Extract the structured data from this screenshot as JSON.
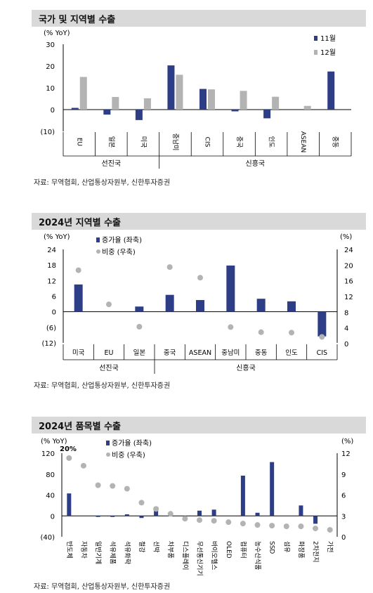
{
  "charts": [
    {
      "title": "국가 및 지역별 수출",
      "source": "자료: 무역협회, 산업통상자원부, 신한투자증권",
      "y_unit": "(% YoY)",
      "y_ticks": [
        "30",
        "20",
        "10",
        "0",
        "(10)"
      ],
      "legend": [
        "11월",
        "12월"
      ],
      "colors": {
        "nov": "#2e3e86",
        "dec": "#b3b3b3"
      },
      "groups": [
        "선진국",
        "신흥국"
      ]
    },
    {
      "title": "2024년 지역별 수출",
      "source": "자료: 무역협회, 산업통상자원부, 신한투자증권",
      "y_unit": "(% YoY)",
      "y2_unit": "(%)",
      "y_ticks": [
        "24",
        "18",
        "12",
        "6",
        "0",
        "(6)",
        "(12)"
      ],
      "y2_ticks": [
        "24",
        "20",
        "16",
        "12",
        "8",
        "4",
        "0"
      ],
      "legend": [
        "증가율 (좌축)",
        "비중 (우축)"
      ],
      "colors": {
        "bar": "#2e3e86",
        "dot": "#b3b3b3"
      },
      "groups": [
        "선진국",
        "신흥국"
      ]
    },
    {
      "title": "2024년 품목별 수출",
      "source": "자료: 무역협회, 산업통상자원부, 신한투자증권",
      "y_unit": "(% YoY)",
      "y2_unit": "(%)",
      "y_ticks": [
        "120",
        "80",
        "40",
        "0",
        "(40)"
      ],
      "y2_ticks": [
        "12",
        "9",
        "6",
        "3",
        "0"
      ],
      "legend": [
        "증가율 (좌축)",
        "비중 (우축)"
      ],
      "annotation": "20%",
      "colors": {
        "bar": "#2e3e86",
        "dot": "#b3b3b3"
      }
    }
  ],
  "chart_data": [
    {
      "type": "bar",
      "title": "국가 및 지역별 수출",
      "ylabel": "(% YoY)",
      "ylim": [
        -10,
        30
      ],
      "categories": [
        "EU",
        "일본",
        "미국",
        "중남미",
        "CIS",
        "중국",
        "인도",
        "ASEAN",
        "중동"
      ],
      "series": [
        {
          "name": "11월",
          "values": [
            0.8,
            -2.3,
            -4.8,
            20.3,
            9.5,
            -0.8,
            -4.0,
            null,
            17.5
          ]
        },
        {
          "name": "12월",
          "values": [
            15.0,
            5.8,
            5.2,
            16.0,
            9.3,
            8.6,
            5.9,
            1.7,
            null
          ]
        }
      ],
      "legend_position": "top-right"
    },
    {
      "type": "bar",
      "title": "2024년 지역별 수출",
      "ylabel": "(% YoY)",
      "y2label": "(%)",
      "ylim": [
        -12,
        24
      ],
      "y2lim": [
        0,
        24
      ],
      "categories": [
        "미국",
        "EU",
        "일본",
        "중국",
        "ASEAN",
        "중남미",
        "중동",
        "인도",
        "CIS"
      ],
      "series": [
        {
          "name": "증가율 (좌축)",
          "axis": "left",
          "values": [
            10.5,
            0,
            2.0,
            6.5,
            4.5,
            17.8,
            5.0,
            4.0,
            -9.5
          ]
        },
        {
          "name": "비중 (우축)",
          "axis": "right",
          "type": "scatter",
          "values": [
            18.7,
            10.0,
            4.3,
            19.5,
            16.8,
            4.2,
            2.9,
            2.8,
            1.7
          ]
        }
      ],
      "legend_position": "top-left"
    },
    {
      "type": "bar",
      "title": "2024년 품목별 수출",
      "ylabel": "(% YoY)",
      "y2label": "(%)",
      "ylim": [
        -40,
        120
      ],
      "y2lim": [
        0,
        12
      ],
      "categories": [
        "반도체",
        "자동차",
        "일반기계",
        "석유제품",
        "석유화학",
        "철강",
        "선박",
        "차부품",
        "디스플레이",
        "무선통신기기",
        "바이오헬스",
        "OLED",
        "컴퓨터",
        "농수산식품",
        "SSD",
        "섬유",
        "화장품",
        "2차전지",
        "가전"
      ],
      "series": [
        {
          "name": "증가율 (좌축)",
          "axis": "left",
          "values": [
            43,
            0,
            -2,
            -2,
            3,
            -4,
            17,
            0,
            0,
            10,
            12,
            0,
            77,
            6,
            103,
            0,
            20,
            -15,
            0
          ]
        },
        {
          "name": "비중 (우축)",
          "axis": "right",
          "type": "scatter",
          "values": [
            11.3,
            10.2,
            7.4,
            7.3,
            6.9,
            4.9,
            4.0,
            3.3,
            2.6,
            2.4,
            2.3,
            2.1,
            1.9,
            1.7,
            1.6,
            1.5,
            1.5,
            1.2,
            1.0
          ]
        }
      ],
      "annotation": "20%",
      "legend_position": "top-left"
    }
  ]
}
